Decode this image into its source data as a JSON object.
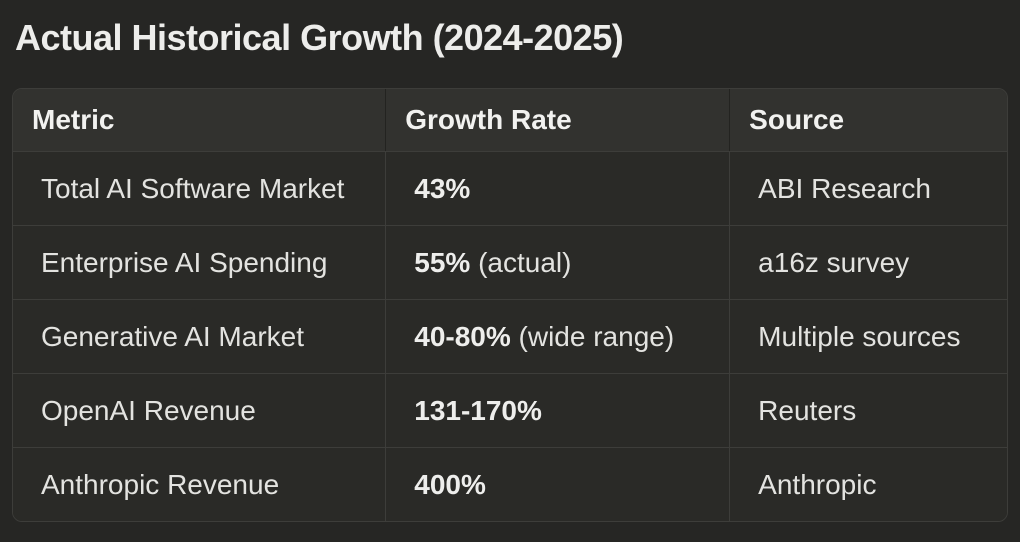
{
  "title": "Actual Historical Growth (2024-2025)",
  "colors": {
    "page_bg": "#262624",
    "header_bg": "#32322f",
    "cell_bg": "#2a2a27",
    "border": "#3d3d3a",
    "text": "#e3e3e0",
    "title_text": "#ededeb"
  },
  "table": {
    "columns": [
      "Metric",
      "Growth Rate",
      "Source"
    ],
    "rows": [
      {
        "metric": "Total AI Software Market",
        "rate_bold": "43%",
        "rate_note": "",
        "source": "ABI Research"
      },
      {
        "metric": "Enterprise AI Spending",
        "rate_bold": "55%",
        "rate_note": " (actual)",
        "source": "a16z survey"
      },
      {
        "metric": "Generative AI Market",
        "rate_bold": "40-80%",
        "rate_note": " (wide range)",
        "source": "Multiple sources"
      },
      {
        "metric": "OpenAI Revenue",
        "rate_bold": "131-170%",
        "rate_note": "",
        "source": "Reuters"
      },
      {
        "metric": "Anthropic Revenue",
        "rate_bold": "400%",
        "rate_note": "",
        "source": "Anthropic"
      }
    ]
  }
}
